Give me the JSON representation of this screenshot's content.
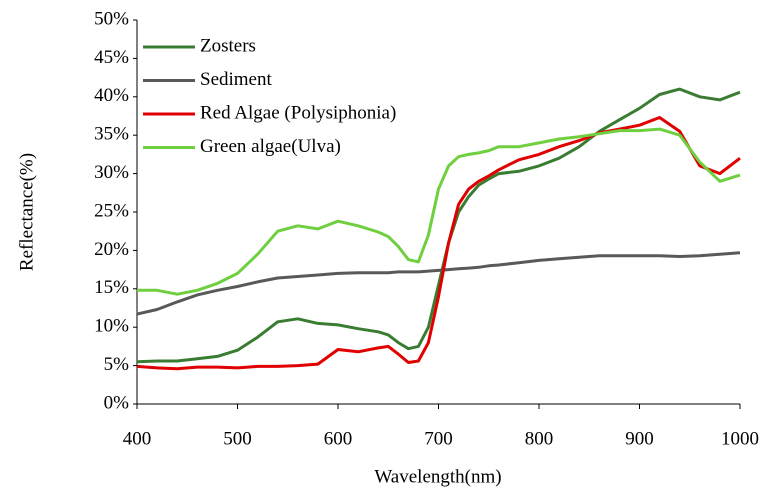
{
  "chart_data": {
    "type": "line",
    "x_label": "Wavelength(nm)",
    "y_label": "Reflectance(%)",
    "x": [
      400,
      420,
      440,
      460,
      480,
      500,
      520,
      540,
      560,
      580,
      600,
      620,
      640,
      650,
      660,
      670,
      680,
      690,
      700,
      710,
      720,
      730,
      740,
      750,
      760,
      780,
      800,
      820,
      840,
      860,
      880,
      900,
      920,
      940,
      960,
      980,
      1000
    ],
    "series": [
      {
        "name": "Zosters",
        "color": "#3a7d32",
        "values": [
          5.5,
          5.6,
          5.6,
          5.9,
          6.2,
          7,
          8.7,
          10.7,
          11.1,
          10.5,
          10.3,
          9.8,
          9.4,
          9.0,
          8.0,
          7.2,
          7.5,
          10,
          15.5,
          21,
          25,
          27,
          28.5,
          29.3,
          30,
          30.3,
          31,
          32,
          33.5,
          35.5,
          37,
          38.5,
          40.3,
          41,
          40,
          39.6,
          40.6
        ]
      },
      {
        "name": "Sediment",
        "color": "#595959",
        "values": [
          11.7,
          12.3,
          13.3,
          14.2,
          14.8,
          15.3,
          15.9,
          16.4,
          16.6,
          16.8,
          17.0,
          17.1,
          17.1,
          17.1,
          17.2,
          17.2,
          17.2,
          17.3,
          17.4,
          17.5,
          17.6,
          17.7,
          17.8,
          18,
          18.1,
          18.4,
          18.7,
          18.9,
          19.1,
          19.3,
          19.3,
          19.3,
          19.3,
          19.2,
          19.3,
          19.5,
          19.7
        ]
      },
      {
        "name": "Red Algae (Polysiphonia)",
        "color": "#e00000",
        "values": [
          4.9,
          4.7,
          4.6,
          4.8,
          4.8,
          4.7,
          4.9,
          4.9,
          5.0,
          5.2,
          7.1,
          6.8,
          7.3,
          7.5,
          6.5,
          5.4,
          5.6,
          8,
          14,
          21,
          26,
          28,
          29,
          29.7,
          30.5,
          31.8,
          32.5,
          33.5,
          34.3,
          35.3,
          35.8,
          36.3,
          37.3,
          35.5,
          31,
          30,
          32
        ]
      },
      {
        "name": "Green algae(Ulva)",
        "color": "#6fcf3f",
        "values": [
          14.8,
          14.8,
          14.3,
          14.8,
          15.7,
          17,
          19.5,
          22.5,
          23.2,
          22.8,
          23.8,
          23.2,
          22.4,
          21.8,
          20.5,
          18.8,
          18.5,
          22,
          28,
          31,
          32.2,
          32.5,
          32.7,
          33,
          33.5,
          33.5,
          34,
          34.5,
          34.8,
          35.2,
          35.6,
          35.6,
          35.8,
          35,
          31.5,
          29,
          29.8
        ]
      }
    ],
    "xlim": [
      400,
      1000
    ],
    "xticks": [
      400,
      500,
      600,
      700,
      800,
      900,
      1000
    ],
    "ylim": [
      0,
      50
    ],
    "yticks": [
      {
        "value": 0,
        "label": "0%"
      },
      {
        "value": 5,
        "label": "5%"
      },
      {
        "value": 10,
        "label": "10%"
      },
      {
        "value": 15,
        "label": "15%"
      },
      {
        "value": 20,
        "label": "20%"
      },
      {
        "value": 25,
        "label": "25%"
      },
      {
        "value": 30,
        "label": "30%"
      },
      {
        "value": 35,
        "label": "35%"
      },
      {
        "value": 40,
        "label": "40%"
      },
      {
        "value": 45,
        "label": "45%"
      },
      {
        "value": 50,
        "label": "50%"
      }
    ],
    "legend": "top-left"
  }
}
